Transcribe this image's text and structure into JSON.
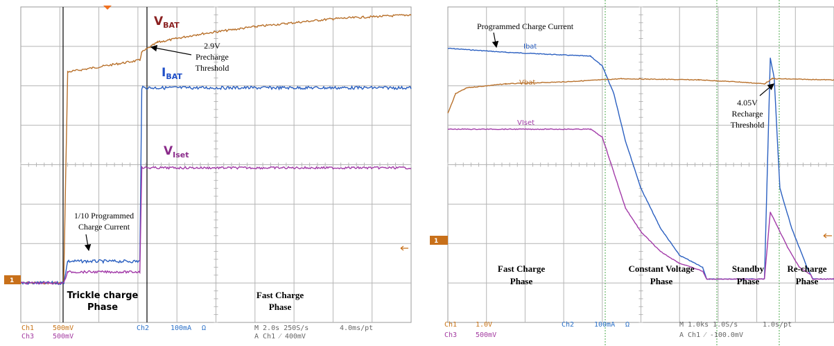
{
  "colors": {
    "vbat": "#b8702a",
    "ibat": "#2a5fc0",
    "viset": "#a23aa8",
    "ch1": "#c87418",
    "ch2": "#2a70c8",
    "ch3": "#a33aa0",
    "grid": "#b4b4b4",
    "label_vbat": "#8a2020",
    "label_ibat": "#1f4fc8",
    "label_viset": "#8a2b8a"
  },
  "left_scope": {
    "labels": {
      "vbat": "V",
      "vbat_sub": "BAT",
      "ibat": "I",
      "ibat_sub": "BAT",
      "viset": "V",
      "viset_sub": "Iset"
    },
    "annotations": {
      "precharge": [
        "2.9V",
        "Precharge",
        "Threshold"
      ],
      "trickle_current": [
        "1/10 Programmed",
        "Charge Current"
      ]
    },
    "phases": {
      "trickle": [
        "Trickle charge",
        "Phase"
      ],
      "fast": [
        "Fast Charge",
        "Phase"
      ]
    },
    "ch1_marker": "1",
    "footer": {
      "ch1": "Ch1",
      "ch1_scale": "500mV",
      "ch3": "Ch3",
      "ch3_scale": "500mV",
      "ch2": "Ch2",
      "ch2_scale": "100mA",
      "ohm": "Ω",
      "timebase": "M 2.0s 250S/s",
      "pt": "4.0ms/pt",
      "trigger": "A  Ch1  ⁄  400mV"
    }
  },
  "right_scope": {
    "trace_labels": {
      "ibat": "Ibat",
      "vbat": "Vbat",
      "viset": "VIset"
    },
    "annotations": {
      "programmed_current": "Programmed Charge Current",
      "recharge": [
        "4.05V",
        "Recharge",
        "Threshold"
      ]
    },
    "phases": {
      "fast": [
        "Fast Charge",
        "Phase"
      ],
      "cv": [
        "Constant Voltage",
        "Phase"
      ],
      "standby": [
        "Standby",
        "Phase"
      ],
      "recharge": [
        "Re-charge",
        "Phase"
      ]
    },
    "ch1_marker": "1",
    "footer": {
      "ch1": "Ch1",
      "ch1_scale": "1.0V",
      "ch3": "Ch3",
      "ch3_scale": "500mV",
      "ch2": "Ch2",
      "ch2_scale": "100mA",
      "ohm": "Ω",
      "timebase": "M 1.0ks 1.0S/s",
      "pt": "1.0s/pt",
      "trigger": "A  Ch1  ⁄  -100.0mV"
    }
  },
  "chart_data": [
    {
      "type": "line",
      "title": "",
      "grid": true,
      "x_units": "divisions",
      "x_range": [
        0,
        10
      ],
      "y_units": "divisions",
      "y_range": [
        -4,
        4
      ],
      "series": [
        {
          "name": "VBAT",
          "x": [
            0,
            1.1,
            1.2,
            3.05,
            3.1,
            3.5,
            4.5,
            6,
            8,
            10
          ],
          "values": [
            -3.0,
            -3.0,
            2.35,
            2.65,
            2.85,
            3.1,
            3.3,
            3.5,
            3.7,
            3.8
          ]
        },
        {
          "name": "IBAT",
          "x": [
            0,
            1.1,
            1.2,
            3.05,
            3.1,
            10
          ],
          "values": [
            -3.0,
            -3.0,
            -2.45,
            -2.45,
            1.95,
            1.95
          ]
        },
        {
          "name": "VIset",
          "x": [
            0,
            1.1,
            1.2,
            3.05,
            3.1,
            10
          ],
          "values": [
            -3.0,
            -3.0,
            -2.72,
            -2.72,
            -0.08,
            -0.08
          ]
        }
      ]
    },
    {
      "type": "line",
      "title": "",
      "grid": true,
      "x_units": "divisions",
      "x_range": [
        0,
        10
      ],
      "y_units": "divisions",
      "y_range": [
        -4,
        4
      ],
      "series": [
        {
          "name": "Ibat",
          "x": [
            0,
            1.5,
            3.7,
            4.0,
            4.3,
            4.6,
            5.0,
            5.5,
            6.0,
            6.6,
            6.7,
            8.2,
            8.35,
            8.45,
            8.6,
            8.9,
            9.3,
            9.45,
            10
          ],
          "values": [
            2.95,
            2.85,
            2.75,
            2.5,
            1.8,
            0.6,
            -0.6,
            -1.6,
            -2.3,
            -2.6,
            -2.9,
            -2.9,
            2.7,
            2.2,
            -0.6,
            -1.6,
            -2.6,
            -2.9,
            -2.9
          ]
        },
        {
          "name": "Vbat",
          "x": [
            0,
            0.2,
            0.5,
            1.5,
            3.0,
            4.5,
            6.5,
            7.5,
            8.2,
            8.4,
            10
          ],
          "values": [
            1.3,
            1.8,
            1.95,
            2.05,
            2.1,
            2.18,
            2.15,
            2.1,
            2.05,
            2.18,
            2.15
          ]
        },
        {
          "name": "VIset",
          "x": [
            0,
            3.7,
            4.0,
            4.3,
            4.6,
            5.0,
            5.5,
            6.0,
            6.6,
            6.7,
            8.2,
            8.35,
            8.5,
            8.8,
            9.1,
            9.4,
            9.45,
            10
          ],
          "values": [
            0.9,
            0.9,
            0.7,
            -0.2,
            -1.1,
            -1.7,
            -2.2,
            -2.5,
            -2.7,
            -2.9,
            -2.9,
            -1.2,
            -1.5,
            -2.1,
            -2.6,
            -2.8,
            -2.9,
            -2.9
          ]
        }
      ]
    }
  ]
}
